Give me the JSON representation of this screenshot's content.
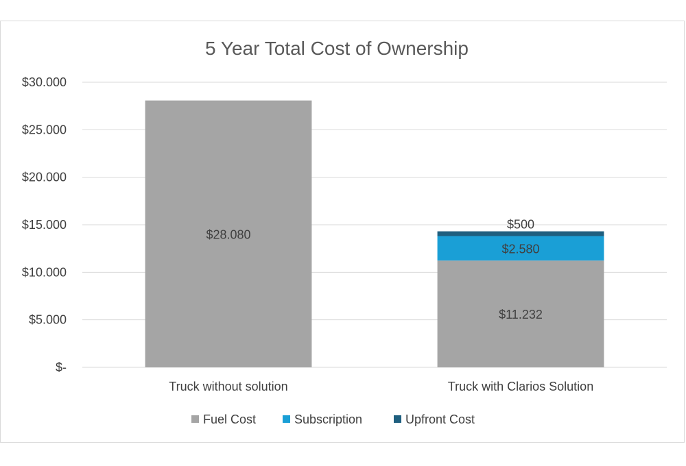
{
  "chart_data": {
    "type": "bar",
    "stacked": true,
    "title": "5 Year Total Cost of Ownership",
    "categories": [
      "Truck without solution",
      "Truck with Clarios Solution"
    ],
    "series": [
      {
        "name": "Fuel Cost",
        "values": [
          28080,
          11232
        ],
        "labels": [
          "$28.080",
          "$11.232"
        ],
        "color": "#a5a5a5"
      },
      {
        "name": "Subscription",
        "values": [
          0,
          2580
        ],
        "labels": [
          "",
          "$2.580"
        ],
        "color": "#1a9fd6"
      },
      {
        "name": "Upfront Cost",
        "values": [
          0,
          500
        ],
        "labels": [
          "",
          "$500"
        ],
        "color": "#1f5f7f"
      }
    ],
    "yticks": [
      {
        "value": 0,
        "label": "$-"
      },
      {
        "value": 5000,
        "label": "$5.000"
      },
      {
        "value": 10000,
        "label": "$10.000"
      },
      {
        "value": 15000,
        "label": "$15.000"
      },
      {
        "value": 20000,
        "label": "$20.000"
      },
      {
        "value": 25000,
        "label": "$25.000"
      },
      {
        "value": 30000,
        "label": "$30.000"
      }
    ],
    "ylim": [
      0,
      30000
    ],
    "grid": true,
    "legend_position": "bottom",
    "gridline_color": "#d9d9d9"
  }
}
